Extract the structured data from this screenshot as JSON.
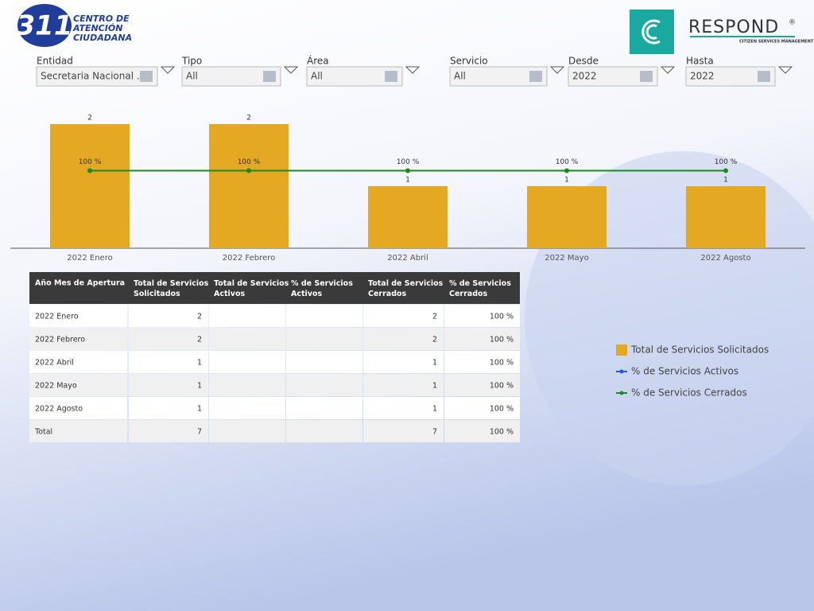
{
  "header": {
    "logo_number": "311",
    "logo_lines": [
      "CENTRO DE",
      "ATENCIÓN",
      "CIUDADANA"
    ],
    "brand": "RESPOND",
    "brand_mark": "®",
    "brand_tagline": "CITIZEN SERVICES MANAGEMENT"
  },
  "filters": [
    {
      "label": "Entidad",
      "value": "Secretaria Nacional ..."
    },
    {
      "label": "Tipo",
      "value": "All"
    },
    {
      "label": "Área",
      "value": "All"
    },
    {
      "label": "Servicio",
      "value": "All"
    },
    {
      "label": "Desde",
      "value": "2022"
    },
    {
      "label": "Hasta",
      "value": "2022"
    }
  ],
  "chart_data": {
    "type": "bar",
    "categories": [
      "2022 Enero",
      "2022 Febrero",
      "2022 Abril",
      "2022 Mayo",
      "2022 Agosto"
    ],
    "series": [
      {
        "name": "Total de Servicios Solicitados",
        "color": "#e5a823",
        "values": [
          2,
          2,
          1,
          1,
          1
        ]
      },
      {
        "name": "% de Servicios Activos",
        "color": "#1f5fc8",
        "values": [
          null,
          null,
          null,
          null,
          null
        ],
        "axis": "y2"
      },
      {
        "name": "% de Servicios Cerrados",
        "color": "#1a8a1a",
        "values": [
          100,
          100,
          100,
          100,
          100
        ],
        "value_labels": [
          "100 %",
          "100 %",
          "100 %",
          "100 %",
          "100 %"
        ],
        "axis": "y2"
      }
    ],
    "ylim": [
      0,
      2
    ],
    "y2lim": [
      0,
      160
    ]
  },
  "table": {
    "columns": [
      "Año Mes de Apertura",
      "Total de Servicios Solicitados",
      "Total de Servicios Activos",
      "% de Servicios Activos",
      "Total de Servicios Cerrados",
      "% de Servicios Cerrados"
    ],
    "rows": [
      [
        "2022 Enero",
        2,
        null,
        null,
        2,
        "100 %"
      ],
      [
        "2022 Febrero",
        2,
        null,
        null,
        2,
        "100 %"
      ],
      [
        "2022 Abril",
        1,
        null,
        null,
        1,
        "100 %"
      ],
      [
        "2022 Mayo",
        1,
        null,
        null,
        1,
        "100 %"
      ],
      [
        "2022 Agosto",
        1,
        null,
        null,
        1,
        "100 %"
      ],
      [
        "Total",
        7,
        null,
        null,
        7,
        "100 %"
      ]
    ]
  }
}
